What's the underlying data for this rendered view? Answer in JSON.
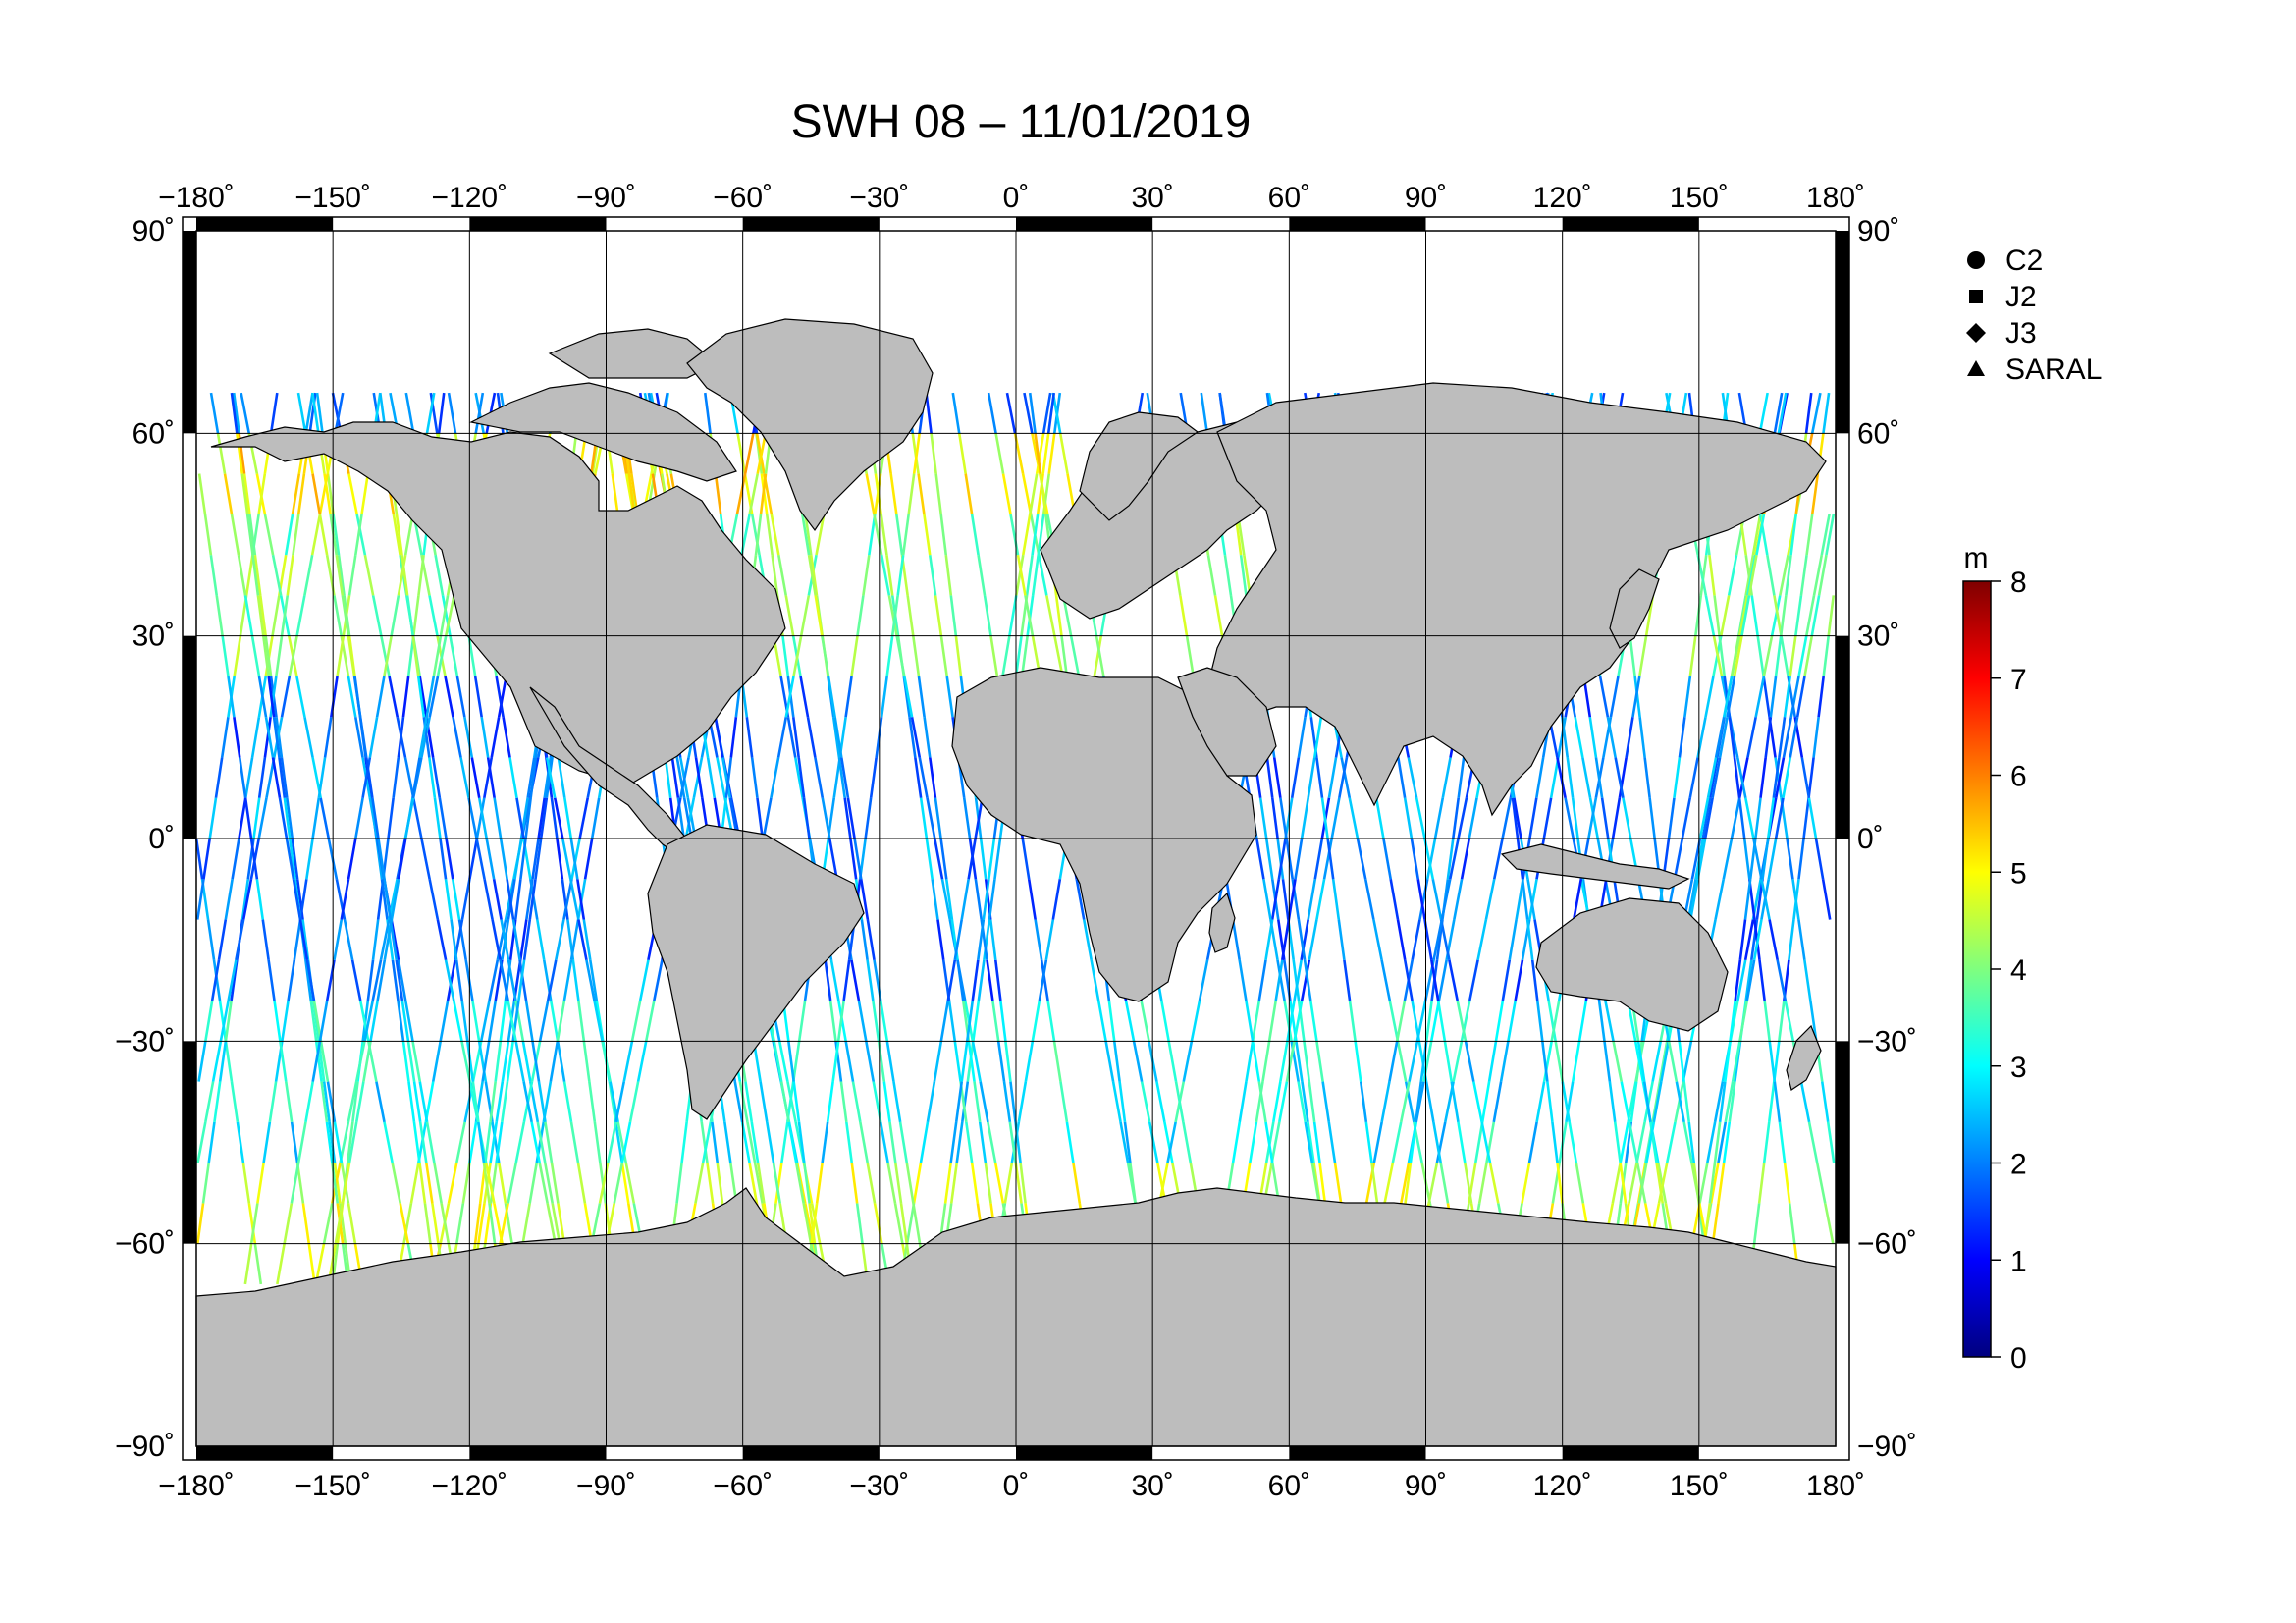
{
  "title": "SWH 08 – 11/01/2019",
  "lon_ticks": [
    "−180˚",
    "−150˚",
    "−120˚",
    "−90˚",
    "−60˚",
    "−30˚",
    "0˚",
    "30˚",
    "60˚",
    "90˚",
    "120˚",
    "150˚",
    "180˚"
  ],
  "lat_ticks": [
    "90˚",
    "60˚",
    "30˚",
    "0˚",
    "−30˚",
    "−60˚",
    "−90˚"
  ],
  "legend": [
    {
      "symbol": "circle",
      "label": "C2"
    },
    {
      "symbol": "square",
      "label": "J2"
    },
    {
      "symbol": "diamond",
      "label": "J3"
    },
    {
      "symbol": "triangle",
      "label": "SARAL"
    }
  ],
  "colorbar": {
    "unit": "m",
    "min": 0,
    "max": 8,
    "ticks": [
      "0",
      "1",
      "2",
      "3",
      "4",
      "5",
      "6",
      "7",
      "8"
    ],
    "colors": [
      "#00007f",
      "#0000ff",
      "#007fff",
      "#00ffff",
      "#7fff7f",
      "#ffff00",
      "#ff7f00",
      "#ff0000",
      "#7f0000"
    ]
  },
  "colors": {
    "land": "#bdbdbd",
    "ocean": "#ffffff",
    "frame": "#000000"
  },
  "chart_data": {
    "type": "map-track",
    "variable": "SWH",
    "lon_range": [
      -180,
      180
    ],
    "lat_range": [
      -90,
      90
    ],
    "grid_spacing_deg": 30,
    "satellites": [
      "C2",
      "J2",
      "J3",
      "SARAL"
    ],
    "swh_range_m": [
      0,
      8
    ],
    "regions": [
      {
        "lat": [
          50,
          60
        ],
        "swh_m": 5
      },
      {
        "lat": [
          30,
          50
        ],
        "swh_m": 4
      },
      {
        "lat": [
          -20,
          30
        ],
        "swh_m": 2
      },
      {
        "lat": [
          -45,
          -20
        ],
        "swh_m": 3
      },
      {
        "lat": [
          -60,
          -45
        ],
        "swh_m": 4.5
      }
    ]
  }
}
